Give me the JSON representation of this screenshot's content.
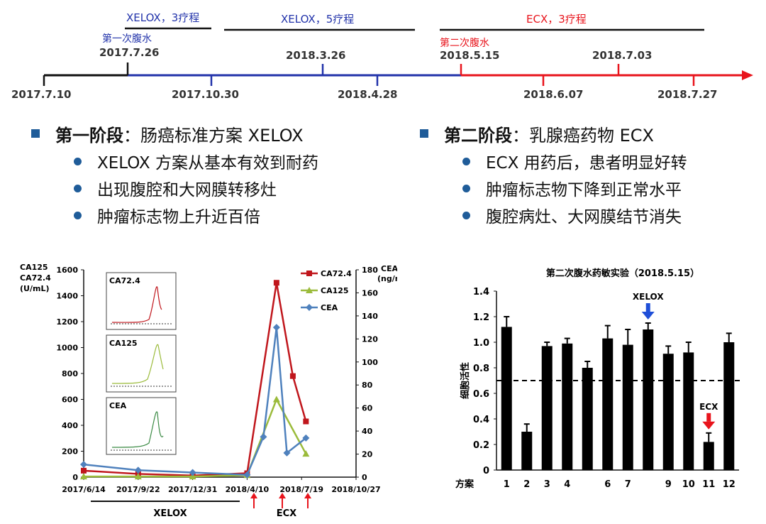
{
  "timeline": {
    "regimens": [
      {
        "label": "XELOX，3疗程",
        "color": "#2233aa"
      },
      {
        "label": "XELOX，5疗程",
        "color": "#2233aa"
      },
      {
        "label": "ECX，3疗程",
        "color": "#e8141c"
      }
    ],
    "events": [
      {
        "label": "第一次腹水",
        "date": "2017.7.26",
        "color": "#2233aa"
      },
      {
        "label": "第二次腹水",
        "date": "2018.5.15",
        "color": "#e8141c"
      }
    ],
    "dates_above": [
      "2018.3.26",
      "2018.7.03"
    ],
    "dates_below": [
      "2017.7.10",
      "2017.10.30",
      "2018.4.28",
      "2018.6.07",
      "2018.7.27"
    ]
  },
  "stage1": {
    "title": "第一阶段",
    "desc": "：肠癌标准方案 XELOX",
    "items": [
      "XELOX 方案从基本有效到耐药",
      "出现腹腔和大网膜转移灶",
      "肿瘤标志物上升近百倍"
    ]
  },
  "stage2": {
    "title": "第二阶段",
    "desc": "：乳腺癌药物 ECX",
    "items": [
      "ECX 用药后，患者明显好转",
      "肿瘤标志物下降到正常水平",
      "腹腔病灶、大网膜结节消失"
    ]
  },
  "colors": {
    "accent": "#1f5c99",
    "ca724": "#c0161c",
    "ca125": "#9bbb3b",
    "cea": "#4f81bd",
    "xelox_arrow": "#1f4fd8",
    "ecx_arrow": "#e8141c"
  },
  "chart_data": [
    {
      "type": "line",
      "ylabel": "CA125\nCA72.4\n(U/mL)",
      "y2label": "CEA\n(ng/mL)",
      "ylim": [
        0,
        1600
      ],
      "y2lim": [
        0,
        180
      ],
      "yticks": [
        "0",
        "200",
        "400",
        "600",
        "800",
        "1000",
        "1200",
        "1400",
        "1600"
      ],
      "y2ticks": [
        "0",
        "20",
        "40",
        "60",
        "80",
        "100",
        "120",
        "140",
        "160",
        "180"
      ],
      "xticks": [
        "2017/6/14",
        "2017/9/22",
        "2017/12/31",
        "2018/4/10",
        "2018/7/19",
        "2018/10/27"
      ],
      "xlim": [
        "2017-06-14",
        "2018-10-27"
      ],
      "legend_position": "top-right",
      "series": [
        {
          "name": "CA72.4",
          "axis": "left",
          "color": "#c0161c",
          "marker": "square",
          "x": [
            "2017-06-14",
            "2017-09-22",
            "2017-12-31",
            "2018-04-10",
            "2018-06-03",
            "2018-07-03",
            "2018-07-27"
          ],
          "values": [
            50,
            25,
            12,
            30,
            1500,
            780,
            430
          ]
        },
        {
          "name": "CA125",
          "axis": "left",
          "color": "#9bbb3b",
          "marker": "triangle",
          "x": [
            "2017-06-14",
            "2017-09-22",
            "2017-12-31",
            "2018-04-10",
            "2018-06-03",
            "2018-07-27"
          ],
          "values": [
            5,
            5,
            5,
            15,
            600,
            180
          ]
        },
        {
          "name": "CEA",
          "axis": "right",
          "color": "#4f81bd",
          "marker": "diamond",
          "x": [
            "2017-06-14",
            "2017-09-22",
            "2017-12-31",
            "2018-04-10",
            "2018-05-10",
            "2018-06-03",
            "2018-06-22",
            "2018-07-27"
          ],
          "values": [
            11,
            6,
            4,
            2,
            35,
            130,
            21,
            34
          ]
        }
      ],
      "insets": [
        {
          "label": "CA72.4"
        },
        {
          "label": "CA125"
        },
        {
          "label": "CEA"
        }
      ],
      "bottom_labels": [
        {
          "label": "XELOX"
        },
        {
          "label": "ECX"
        }
      ]
    },
    {
      "type": "bar",
      "title": "第二次腹水药敏实验（2018.5.15）",
      "ylabel": "细胞活性",
      "xlabel": "方案",
      "ylim": [
        0,
        1.4
      ],
      "yticks": [
        "0",
        "0.2",
        "0.4",
        "0.6",
        "0.8",
        "1.0",
        "1.2",
        "1.4"
      ],
      "reference_line": 0.7,
      "categories": [
        "1",
        "2",
        "3",
        "4",
        "",
        "6",
        "7",
        "",
        "9",
        "10",
        "11",
        "12"
      ],
      "values": [
        1.12,
        0.3,
        0.97,
        0.99,
        0.8,
        1.03,
        0.98,
        1.1,
        0.91,
        0.92,
        0.22,
        1.0
      ],
      "errors": [
        0.08,
        0.06,
        0.03,
        0.04,
        0.05,
        0.1,
        0.12,
        0.05,
        0.06,
        0.08,
        0.07,
        0.07
      ],
      "annotations": [
        {
          "label": "XELOX",
          "bar": 7,
          "color": "#1f4fd8"
        },
        {
          "label": "ECX",
          "bar": 10,
          "color": "#e8141c"
        }
      ]
    }
  ]
}
